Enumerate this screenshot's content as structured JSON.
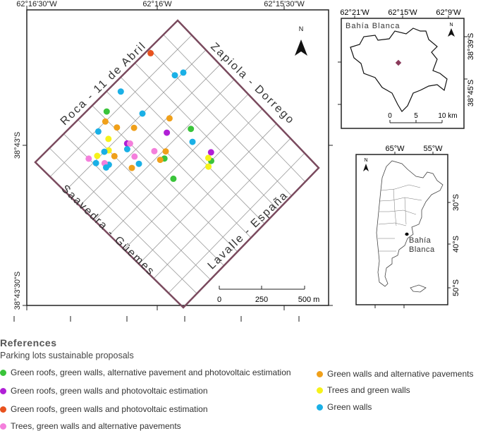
{
  "main_map": {
    "top_lon_labels": [
      "62°16'30\"W",
      "62°16'W",
      "62°15'30\"W"
    ],
    "left_lat_labels": [
      "38°43'S",
      "38°43'30\"S"
    ],
    "north": "N",
    "streets": {
      "nw": "Roca - 11 de Abril",
      "ne": "Zapiola - Dorrego",
      "sw": "Saavedra - Güemes",
      "se": "Lavalle - España"
    },
    "scale": {
      "labels": [
        "0",
        "250",
        "500 m"
      ]
    },
    "colors": {
      "frame": "#7a4a5e",
      "grid": "#9a9a9a"
    }
  },
  "inset_city": {
    "top_labels": [
      "62°21'W",
      "62°15'W",
      "62°9'W"
    ],
    "right_labels": [
      "38°39'S",
      "38°45'S"
    ],
    "name": "Bahía Blanca",
    "north": "N",
    "scale": {
      "labels": [
        "0",
        "5",
        "10 km"
      ]
    }
  },
  "inset_country": {
    "top_labels": [
      "65°W",
      "55°W"
    ],
    "right_labels": [
      "30°S",
      "40°S",
      "50°S"
    ],
    "north": "N",
    "city_label_line1": "Bahía",
    "city_label_line2": "Blanca"
  },
  "legend": {
    "title": "References",
    "subtitle": "Parking lots sustainable proposals",
    "items": [
      {
        "label": "Green roofs, green walls, alternative pavement and photovoltaic estimation",
        "color": "#3ac43a"
      },
      {
        "label": "Green roofs, green walls and photovoltaic estimation",
        "color": "#b01fd6"
      },
      {
        "label": "Green roofs, green walls and photovoltaic estimation",
        "color": "#e8521e"
      },
      {
        "label": "Trees, green walls and alternative pavements",
        "color": "#f47fdc"
      },
      {
        "label": "Green walls and alternative pavements",
        "color": "#f0a01a"
      },
      {
        "label": "Trees and green walls",
        "color": "#f6f21a"
      },
      {
        "label": "Green walls",
        "color": "#1ab0e6"
      }
    ]
  },
  "points": [
    {
      "c": 1,
      "u": 0.66,
      "v": 0.57
    },
    {
      "c": 0,
      "u": 0.63,
      "v": 0.6
    },
    {
      "c": 5,
      "u": 0.63,
      "v": 0.58
    },
    {
      "c": 4,
      "u": 0.5,
      "v": 0.41
    },
    {
      "c": 0,
      "u": 0.47,
      "v": 0.43
    },
    {
      "c": 4,
      "u": 0.45,
      "v": 0.42
    },
    {
      "c": 0,
      "u": 0.43,
      "v": 0.53
    },
    {
      "c": 3,
      "u": 0.46,
      "v": 0.37
    },
    {
      "c": 6,
      "u": 0.36,
      "v": 0.36
    },
    {
      "c": 3,
      "u": 0.37,
      "v": 0.32
    },
    {
      "c": 4,
      "u": 0.32,
      "v": 0.35
    },
    {
      "c": 4,
      "u": 0.3,
      "v": 0.25
    },
    {
      "c": 6,
      "u": 0.55,
      "v": 0.2
    },
    {
      "c": 0,
      "u": 0.43,
      "v": 0.07
    },
    {
      "c": 4,
      "u": 0.41,
      "v": 0.16
    },
    {
      "c": 6,
      "u": 0.55,
      "v": 0.05
    },
    {
      "c": 6,
      "u": 0.8,
      "v": 0.18
    },
    {
      "c": 2,
      "u": 0.79,
      "v": 0.02
    },
    {
      "c": 4,
      "u": 0.63,
      "v": 0.31
    },
    {
      "c": 0,
      "u": 0.67,
      "v": 0.42
    },
    {
      "c": 6,
      "u": 0.63,
      "v": 0.47
    },
    {
      "c": 1,
      "u": 0.57,
      "v": 0.35
    },
    {
      "c": 4,
      "u": 0.47,
      "v": 0.22
    },
    {
      "c": 4,
      "u": 0.39,
      "v": 0.1
    },
    {
      "c": 1,
      "u": 0.39,
      "v": 0.25
    },
    {
      "c": 3,
      "u": 0.4,
      "v": 0.26
    },
    {
      "c": 6,
      "u": 0.37,
      "v": 0.27
    },
    {
      "c": 5,
      "u": 0.34,
      "v": 0.17
    },
    {
      "c": 5,
      "u": 0.3,
      "v": 0.21
    },
    {
      "c": 6,
      "u": 0.33,
      "v": 0.11
    },
    {
      "c": 6,
      "u": 0.28,
      "v": 0.2
    },
    {
      "c": 6,
      "u": 0.25,
      "v": 0.26
    },
    {
      "c": 3,
      "u": 0.24,
      "v": 0.24
    },
    {
      "c": 5,
      "u": 0.24,
      "v": 0.19
    },
    {
      "c": 6,
      "u": 0.23,
      "v": 0.26
    },
    {
      "c": 6,
      "u": 0.21,
      "v": 0.21
    },
    {
      "c": 3,
      "u": 0.2,
      "v": 0.17
    },
    {
      "c": 6,
      "u": 0.84,
      "v": 0.2
    },
    {
      "c": 5,
      "u": 0.6,
      "v": 0.61
    }
  ]
}
